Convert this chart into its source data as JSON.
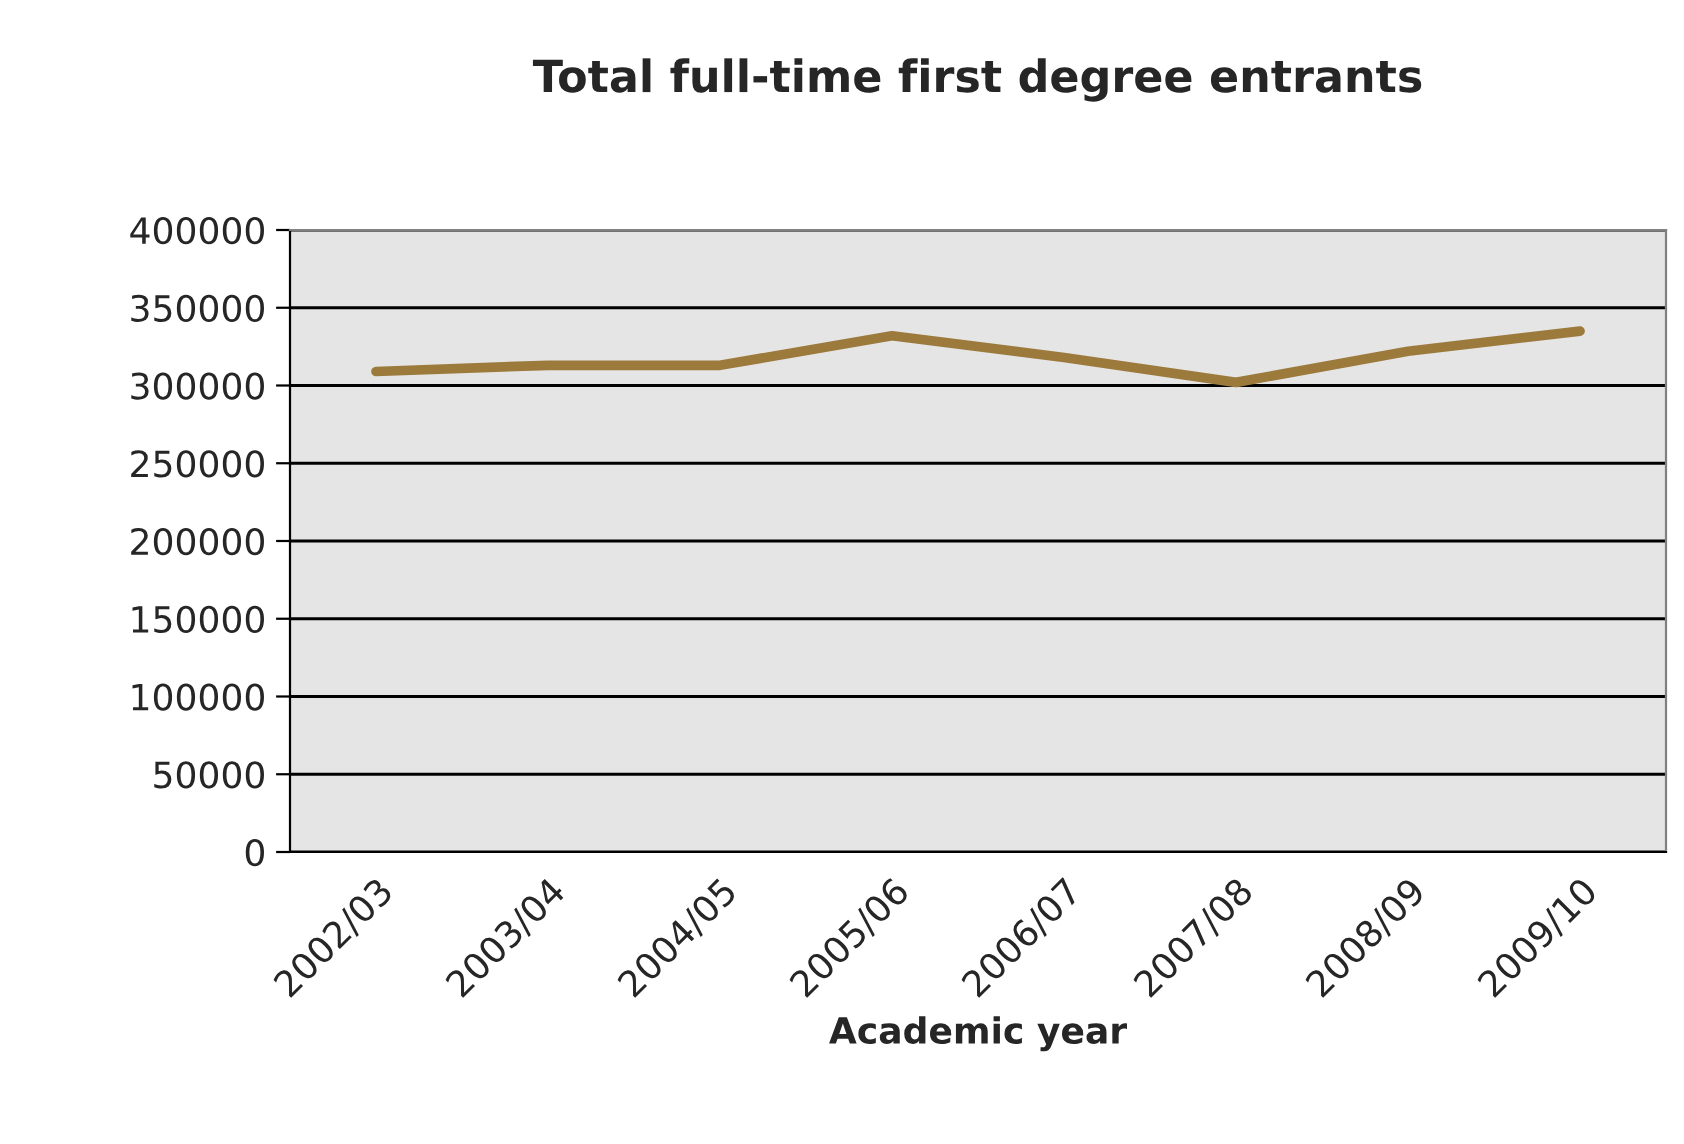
{
  "chart_data": {
    "type": "line",
    "title": "Total full-time first degree entrants",
    "xlabel": "Academic year",
    "categories": [
      "2002/03",
      "2003/04",
      "2004/05",
      "2005/06",
      "2006/07",
      "2007/08",
      "2008/09",
      "2009/10"
    ],
    "series": [
      {
        "color": "#9c7a3c",
        "values": [
          309000,
          313000,
          313000,
          332000,
          318000,
          302000,
          322000,
          335000
        ]
      }
    ],
    "ylim": [
      0,
      400000
    ],
    "yticks": [
      0,
      50000,
      100000,
      150000,
      200000,
      250000,
      300000,
      350000,
      400000
    ],
    "grid": "y",
    "marker": "none",
    "line_style": "solid"
  }
}
